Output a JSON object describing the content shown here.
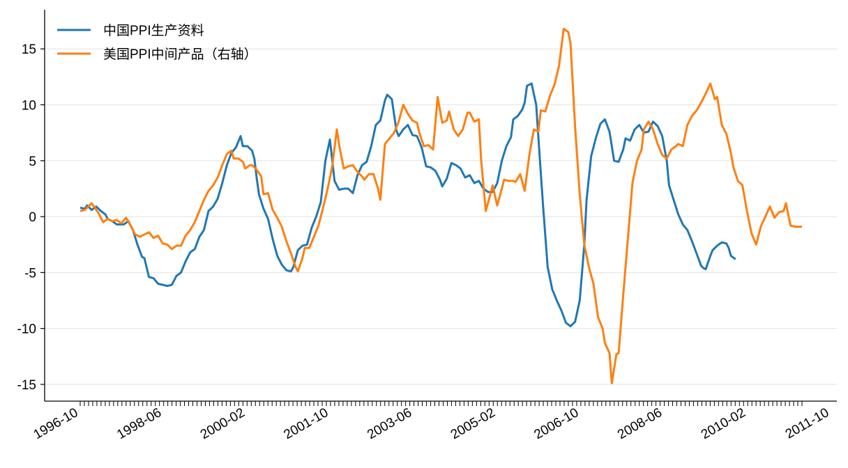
{
  "chart_data": {
    "type": "line",
    "title": "",
    "xlabel": "",
    "ylabel": "",
    "ylim": [
      -16.5,
      18.5
    ],
    "yticks": [
      -15,
      -10,
      -5,
      0,
      5,
      10,
      15
    ],
    "ytick_labels": [
      "-15",
      "-10",
      "-5",
      "0",
      "5",
      "10",
      "15"
    ],
    "x_start": "1996-10",
    "x_count": 174,
    "xtick_labels": [
      "1996-10",
      "1998-06",
      "2000-02",
      "2001-10",
      "2003-06",
      "2005-02",
      "2006-10",
      "2008-06",
      "2010-02",
      "2011-10"
    ],
    "xtick_index": [
      0,
      20,
      40,
      60,
      80,
      100,
      120,
      140,
      160,
      180
    ],
    "grid": "horizontal",
    "legend_position": "top-left",
    "series": [
      {
        "name": "中国PPI生产资料",
        "color": "#1f77b4",
        "points": [
          [
            0,
            0.8
          ],
          [
            2,
            0.7
          ],
          [
            3,
            1.0
          ],
          [
            5,
            0.6
          ],
          [
            7,
            0.9
          ],
          [
            9,
            0.5
          ],
          [
            11,
            0.2
          ],
          [
            12,
            -0.2
          ],
          [
            14,
            -0.4
          ],
          [
            16,
            -0.7
          ],
          [
            19,
            -0.7
          ],
          [
            21,
            -0.4
          ],
          [
            23,
            -1.2
          ],
          [
            25,
            -2.5
          ],
          [
            27,
            -3.6
          ],
          [
            28,
            -3.7
          ],
          [
            30,
            -5.4
          ],
          [
            32,
            -5.5
          ],
          [
            34,
            -6.0
          ],
          [
            36,
            -6.1
          ],
          [
            38,
            -6.2
          ],
          [
            40,
            -6.1
          ],
          [
            42,
            -5.3
          ],
          [
            44,
            -5.0
          ],
          [
            46,
            -4.0
          ],
          [
            48,
            -3.2
          ],
          [
            50,
            -2.9
          ],
          [
            52,
            -1.8
          ],
          [
            54,
            -1.2
          ],
          [
            56,
            0.5
          ],
          [
            58,
            0.9
          ],
          [
            60,
            1.6
          ],
          [
            62,
            3.0
          ],
          [
            64,
            4.6
          ],
          [
            66,
            5.7
          ],
          [
            68,
            6.2
          ],
          [
            70,
            7.2
          ],
          [
            71,
            6.3
          ],
          [
            73,
            6.3
          ],
          [
            75,
            5.9
          ],
          [
            76,
            5.2
          ],
          [
            77,
            3.5
          ],
          [
            78,
            2.0
          ],
          [
            80,
            0.7
          ],
          [
            82,
            -0.2
          ],
          [
            84,
            -2.0
          ],
          [
            86,
            -3.5
          ],
          [
            88,
            -4.3
          ],
          [
            90,
            -4.8
          ],
          [
            92,
            -4.9
          ],
          [
            93,
            -4.5
          ],
          [
            95,
            -3.0
          ],
          [
            97,
            -2.6
          ],
          [
            99,
            -2.5
          ],
          [
            101,
            -1.0
          ],
          [
            103,
            0.0
          ],
          [
            105,
            1.3
          ],
          [
            107,
            5.0
          ],
          [
            109,
            6.9
          ],
          [
            111,
            3.2
          ],
          [
            113,
            2.4
          ],
          [
            115,
            2.5
          ],
          [
            117,
            2.5
          ],
          [
            119,
            2.1
          ],
          [
            121,
            3.7
          ],
          [
            123,
            4.6
          ],
          [
            125,
            4.9
          ],
          [
            127,
            6.3
          ],
          [
            129,
            8.2
          ],
          [
            131,
            8.6
          ],
          [
            133,
            10.4
          ],
          [
            134,
            10.9
          ],
          [
            136,
            10.5
          ],
          [
            138,
            7.7
          ],
          [
            139,
            7.2
          ],
          [
            141,
            7.8
          ],
          [
            143,
            8.2
          ],
          [
            145,
            7.3
          ],
          [
            147,
            7.2
          ],
          [
            149,
            6.2
          ],
          [
            151,
            4.5
          ],
          [
            153,
            4.4
          ],
          [
            155,
            4.1
          ],
          [
            157,
            3.3
          ],
          [
            158,
            2.7
          ],
          [
            160,
            3.4
          ],
          [
            162,
            4.8
          ],
          [
            164,
            4.6
          ],
          [
            166,
            4.3
          ],
          [
            168,
            3.5
          ],
          [
            170,
            3.7
          ],
          [
            172,
            3.0
          ],
          [
            174,
            3.2
          ],
          [
            176,
            2.5
          ],
          [
            178,
            2.2
          ],
          [
            180,
            2.2
          ],
          [
            182,
            3.0
          ],
          [
            184,
            5.0
          ],
          [
            186,
            6.3
          ],
          [
            188,
            7.1
          ],
          [
            189,
            8.7
          ],
          [
            191,
            9.0
          ],
          [
            193,
            9.6
          ],
          [
            194,
            10.2
          ],
          [
            195,
            11.7
          ],
          [
            197,
            11.9
          ],
          [
            199,
            10.0
          ],
          [
            200,
            7.0
          ],
          [
            202,
            1.0
          ],
          [
            204,
            -4.5
          ],
          [
            206,
            -6.5
          ],
          [
            208,
            -7.5
          ],
          [
            210,
            -8.4
          ],
          [
            212,
            -9.5
          ],
          [
            214,
            -9.8
          ],
          [
            216,
            -9.4
          ],
          [
            218,
            -7.5
          ],
          [
            220,
            -2.5
          ],
          [
            221,
            1.5
          ],
          [
            223,
            5.4
          ],
          [
            225,
            7.0
          ],
          [
            227,
            8.3
          ],
          [
            229,
            8.7
          ],
          [
            231,
            7.6
          ],
          [
            233,
            5.0
          ],
          [
            235,
            4.9
          ],
          [
            237,
            6.0
          ],
          [
            238,
            7.0
          ],
          [
            240,
            6.8
          ],
          [
            242,
            7.8
          ],
          [
            244,
            8.2
          ],
          [
            246,
            7.5
          ],
          [
            248,
            7.6
          ],
          [
            250,
            8.5
          ],
          [
            252,
            8.1
          ],
          [
            254,
            7.2
          ],
          [
            256,
            5.0
          ],
          [
            257,
            2.8
          ],
          [
            259,
            1.5
          ],
          [
            261,
            0.2
          ],
          [
            263,
            -0.7
          ],
          [
            265,
            -1.2
          ],
          [
            267,
            -2.2
          ],
          [
            269,
            -3.3
          ],
          [
            271,
            -4.4
          ],
          [
            272,
            -4.6
          ],
          [
            273,
            -4.7
          ],
          [
            275,
            -3.5
          ],
          [
            276,
            -3.0
          ],
          [
            278,
            -2.6
          ],
          [
            280,
            -2.3
          ],
          [
            282,
            -2.4
          ],
          [
            283,
            -2.8
          ],
          [
            284,
            -3.5
          ],
          [
            286,
            -3.8
          ]
        ]
      },
      {
        "name": "美国PPI中间产品（右轴）",
        "color": "#ff7f0e",
        "points": [
          [
            0,
            0.5
          ],
          [
            2,
            0.6
          ],
          [
            4,
            1.0
          ],
          [
            5,
            1.2
          ],
          [
            6,
            0.9
          ],
          [
            8,
            0.3
          ],
          [
            10,
            -0.5
          ],
          [
            12,
            -0.2
          ],
          [
            14,
            -0.4
          ],
          [
            16,
            -0.3
          ],
          [
            18,
            -0.6
          ],
          [
            20,
            -0.1
          ],
          [
            22,
            -0.8
          ],
          [
            24,
            -1.6
          ],
          [
            26,
            -1.8
          ],
          [
            28,
            -1.6
          ],
          [
            30,
            -1.4
          ],
          [
            32,
            -1.9
          ],
          [
            34,
            -1.7
          ],
          [
            36,
            -2.4
          ],
          [
            38,
            -2.5
          ],
          [
            40,
            -2.9
          ],
          [
            42,
            -2.6
          ],
          [
            44,
            -2.6
          ],
          [
            46,
            -1.7
          ],
          [
            48,
            -1.2
          ],
          [
            50,
            -0.5
          ],
          [
            52,
            0.5
          ],
          [
            54,
            1.5
          ],
          [
            56,
            2.3
          ],
          [
            58,
            2.8
          ],
          [
            60,
            3.5
          ],
          [
            62,
            4.6
          ],
          [
            64,
            5.6
          ],
          [
            66,
            5.9
          ],
          [
            67,
            5.2
          ],
          [
            69,
            5.2
          ],
          [
            71,
            4.9
          ],
          [
            72,
            4.3
          ],
          [
            74,
            4.6
          ],
          [
            75,
            4.6
          ],
          [
            77,
            4.2
          ],
          [
            79,
            3.6
          ],
          [
            80,
            2.0
          ],
          [
            82,
            2.1
          ],
          [
            84,
            0.6
          ],
          [
            86,
            -0.1
          ],
          [
            88,
            -0.9
          ],
          [
            90,
            -2.2
          ],
          [
            92,
            -3.3
          ],
          [
            94,
            -4.5
          ],
          [
            95,
            -4.9
          ],
          [
            97,
            -3.7
          ],
          [
            98,
            -2.8
          ],
          [
            100,
            -2.8
          ],
          [
            102,
            -1.8
          ],
          [
            104,
            -0.8
          ],
          [
            106,
            0.8
          ],
          [
            108,
            2.5
          ],
          [
            110,
            4.5
          ],
          [
            112,
            7.8
          ],
          [
            113,
            6.4
          ],
          [
            115,
            4.3
          ],
          [
            117,
            4.5
          ],
          [
            119,
            4.6
          ],
          [
            121,
            4.0
          ],
          [
            123,
            3.6
          ],
          [
            124,
            3.3
          ],
          [
            126,
            3.8
          ],
          [
            128,
            3.8
          ],
          [
            130,
            2.5
          ],
          [
            131,
            1.5
          ],
          [
            133,
            6.5
          ],
          [
            135,
            7.0
          ],
          [
            137,
            7.5
          ],
          [
            139,
            8.5
          ],
          [
            141,
            10.0
          ],
          [
            143,
            9.2
          ],
          [
            145,
            8.6
          ],
          [
            147,
            8.4
          ],
          [
            148,
            7.5
          ],
          [
            150,
            6.3
          ],
          [
            152,
            6.4
          ],
          [
            154,
            6.0
          ],
          [
            156,
            10.7
          ],
          [
            158,
            8.4
          ],
          [
            160,
            8.6
          ],
          [
            161,
            9.4
          ],
          [
            163,
            7.8
          ],
          [
            165,
            7.2
          ],
          [
            167,
            7.8
          ],
          [
            169,
            9.3
          ],
          [
            170,
            9.3
          ],
          [
            172,
            8.5
          ],
          [
            174,
            8.7
          ],
          [
            175,
            5.0
          ],
          [
            177,
            0.5
          ],
          [
            179,
            2.0
          ],
          [
            180,
            2.8
          ],
          [
            182,
            1.0
          ],
          [
            184,
            2.5
          ],
          [
            185,
            3.3
          ],
          [
            187,
            3.2
          ],
          [
            189,
            3.2
          ],
          [
            190,
            3.1
          ],
          [
            192,
            3.8
          ],
          [
            194,
            2.3
          ],
          [
            196,
            5.5
          ],
          [
            198,
            7.8
          ],
          [
            200,
            7.6
          ],
          [
            201,
            9.5
          ],
          [
            203,
            9.4
          ],
          [
            205,
            10.8
          ],
          [
            207,
            11.8
          ],
          [
            209,
            13.5
          ],
          [
            211,
            16.8
          ],
          [
            213,
            16.5
          ],
          [
            214,
            15.5
          ],
          [
            216,
            8.0
          ],
          [
            218,
            2.0
          ],
          [
            220,
            -2.5
          ],
          [
            222,
            -4.5
          ],
          [
            224,
            -6.0
          ],
          [
            226,
            -9.0
          ],
          [
            228,
            -10.0
          ],
          [
            229,
            -11.3
          ],
          [
            231,
            -12.2
          ],
          [
            232,
            -14.9
          ],
          [
            234,
            -12.3
          ],
          [
            235,
            -12.2
          ],
          [
            237,
            -7.0
          ],
          [
            239,
            -2.0
          ],
          [
            241,
            3.0
          ],
          [
            243,
            5.0
          ],
          [
            245,
            6.0
          ],
          [
            246,
            7.8
          ],
          [
            248,
            8.5
          ],
          [
            250,
            7.8
          ],
          [
            252,
            6.5
          ],
          [
            254,
            5.5
          ],
          [
            256,
            5.2
          ],
          [
            258,
            6.0
          ],
          [
            260,
            6.3
          ],
          [
            261,
            6.5
          ],
          [
            263,
            6.3
          ],
          [
            265,
            8.2
          ],
          [
            267,
            9.0
          ],
          [
            269,
            9.5
          ],
          [
            271,
            10.2
          ],
          [
            273,
            11.0
          ],
          [
            275,
            11.9
          ],
          [
            277,
            10.5
          ],
          [
            278,
            10.7
          ],
          [
            280,
            8.2
          ],
          [
            282,
            7.4
          ],
          [
            284,
            5.7
          ],
          [
            285,
            4.5
          ],
          [
            287,
            3.2
          ],
          [
            289,
            2.8
          ],
          [
            291,
            0.5
          ],
          [
            293,
            -1.5
          ],
          [
            295,
            -2.5
          ],
          [
            297,
            -0.9
          ],
          [
            299,
            0.0
          ],
          [
            301,
            0.9
          ],
          [
            303,
            -0.1
          ],
          [
            305,
            0.4
          ],
          [
            307,
            0.5
          ],
          [
            308,
            1.2
          ],
          [
            310,
            -0.8
          ],
          [
            312,
            -0.9
          ],
          [
            315,
            -0.9
          ]
        ]
      }
    ]
  }
}
